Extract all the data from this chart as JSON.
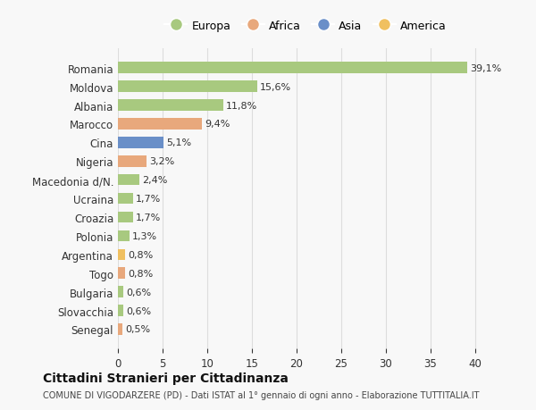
{
  "countries": [
    "Romania",
    "Moldova",
    "Albania",
    "Marocco",
    "Cina",
    "Nigeria",
    "Macedonia d/N.",
    "Ucraina",
    "Croazia",
    "Polonia",
    "Argentina",
    "Togo",
    "Bulgaria",
    "Slovacchia",
    "Senegal"
  ],
  "values": [
    39.1,
    15.6,
    11.8,
    9.4,
    5.1,
    3.2,
    2.4,
    1.7,
    1.7,
    1.3,
    0.8,
    0.8,
    0.6,
    0.6,
    0.5
  ],
  "labels": [
    "39,1%",
    "15,6%",
    "11,8%",
    "9,4%",
    "5,1%",
    "3,2%",
    "2,4%",
    "1,7%",
    "1,7%",
    "1,3%",
    "0,8%",
    "0,8%",
    "0,6%",
    "0,6%",
    "0,5%"
  ],
  "continents": [
    "Europa",
    "Europa",
    "Europa",
    "Africa",
    "Asia",
    "Africa",
    "Europa",
    "Europa",
    "Europa",
    "Europa",
    "America",
    "Africa",
    "Europa",
    "Europa",
    "Africa"
  ],
  "continent_colors": {
    "Europa": "#a8c97f",
    "Africa": "#e8a87c",
    "Asia": "#6a8fc8",
    "America": "#f0c060"
  },
  "legend_order": [
    "Europa",
    "Africa",
    "Asia",
    "America"
  ],
  "title": "Cittadini Stranieri per Cittadinanza",
  "subtitle": "COMUNE DI VIGODARZERE (PD) - Dati ISTAT al 1° gennaio di ogni anno - Elaborazione TUTTITALIA.IT",
  "xlim": [
    0,
    42
  ],
  "xticks": [
    0,
    5,
    10,
    15,
    20,
    25,
    30,
    35,
    40
  ],
  "bg_color": "#f8f8f8",
  "grid_color": "#dddddd",
  "bar_height": 0.6
}
